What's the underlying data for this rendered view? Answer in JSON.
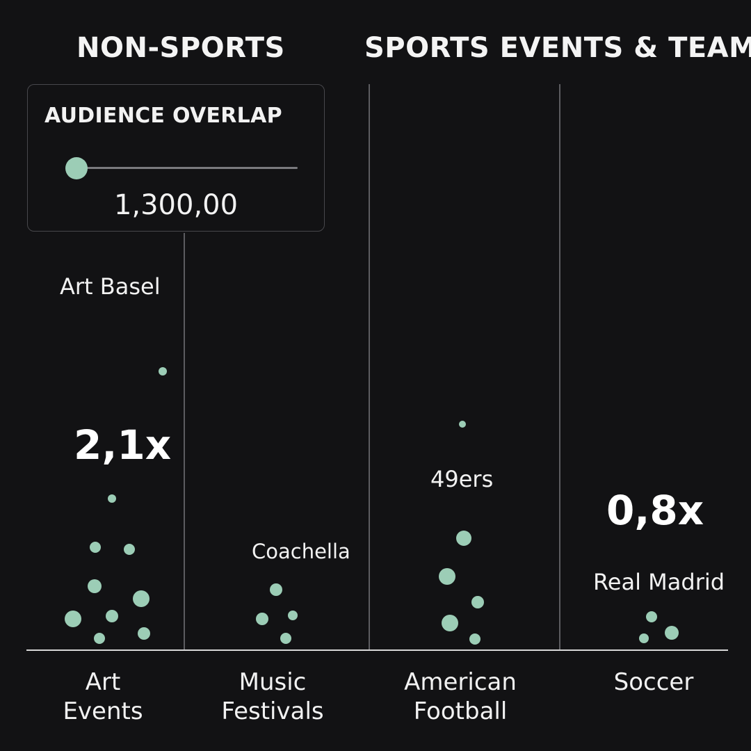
{
  "headers": {
    "non_sports": "NON-SPORTS",
    "sports": "SPORTS EVENTS & TEAMS"
  },
  "overlap_control": {
    "title": "AUDIENCE OVERLAP",
    "value": "1,300,00"
  },
  "colors": {
    "background": "#121214",
    "dot": "#9ccdb6",
    "text": "#f2f2f2",
    "divider": "#5c5c60"
  },
  "chart_data": {
    "type": "scatter",
    "categories": [
      {
        "key": "art",
        "label_line1": "Art",
        "label_line2": "Events",
        "highlight": "Art Basel",
        "multiplier": "2,1x",
        "dot_count": 12
      },
      {
        "key": "music",
        "label_line1": "Music",
        "label_line2": "Festivals",
        "highlight": "Coachella",
        "multiplier": "",
        "dot_count": 5
      },
      {
        "key": "football",
        "label_line1": "American",
        "label_line2": "Football",
        "highlight": "49ers",
        "multiplier": "",
        "dot_count": 6
      },
      {
        "key": "soccer",
        "label_line1": "Soccer",
        "label_line2": "",
        "highlight": "Real Madrid",
        "multiplier": "0,8x",
        "dot_count": 3
      }
    ]
  }
}
